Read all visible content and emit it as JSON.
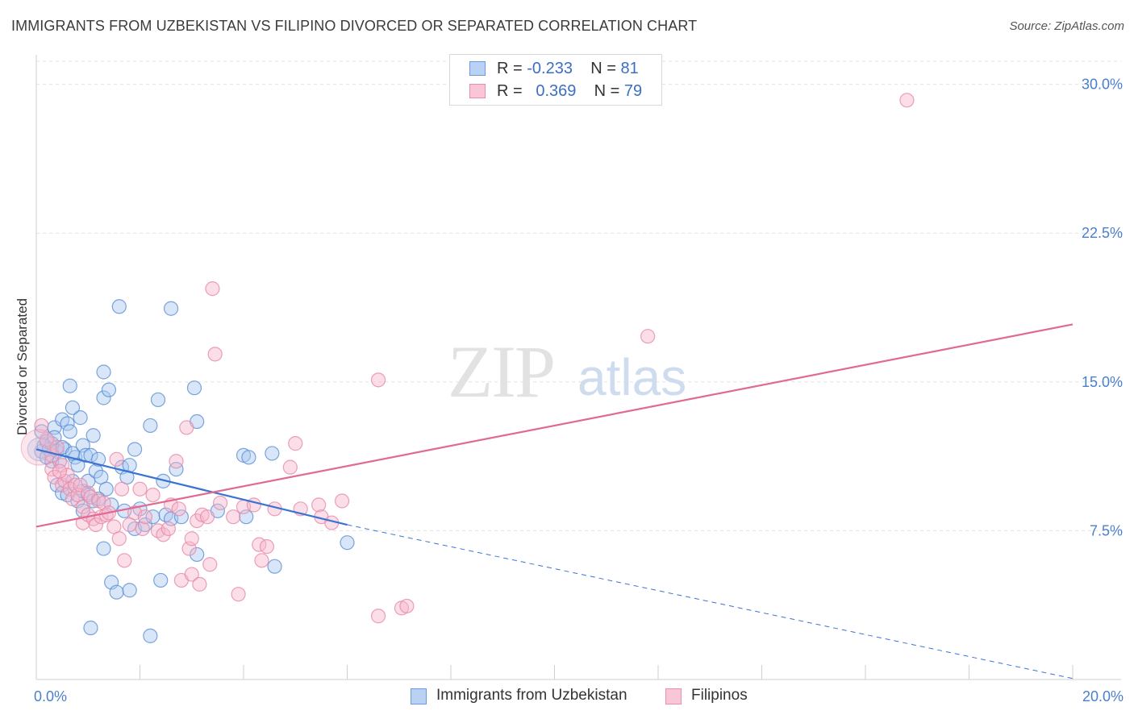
{
  "title": "IMMIGRANTS FROM UZBEKISTAN VS FILIPINO DIVORCED OR SEPARATED CORRELATION CHART",
  "source": "Source: ZipAtlas.com",
  "watermark": {
    "zip": "ZIP",
    "atlas": "atlas"
  },
  "legend": {
    "row1": {
      "r_label": "R = ",
      "r_value": "-0.233",
      "n_label": "N = ",
      "n_value": "81"
    },
    "row2": {
      "r_label": "R = ",
      "r_value": "0.369",
      "n_label": "N = ",
      "n_value": "79"
    }
  },
  "colors": {
    "blue_fill": "#a9c7ef",
    "blue_stroke": "#5b8fd6",
    "blue_line": "#3a74d1",
    "pink_fill": "#f6b6cb",
    "pink_stroke": "#e58aa8",
    "pink_line": "#e06a93",
    "tick_text": "#4a7fcf",
    "grid": "#e3e3e3"
  },
  "chart_data": {
    "type": "scatter",
    "title": "IMMIGRANTS FROM UZBEKISTAN VS FILIPINO DIVORCED OR SEPARATED CORRELATION CHART",
    "xlabel": "",
    "ylabel": "Divorced or Separated",
    "xlim": [
      0,
      20
    ],
    "ylim": [
      0,
      31
    ],
    "x_tick_labels": [
      "0.0%",
      "20.0%"
    ],
    "y_ticks": [
      7.5,
      15.0,
      22.5,
      30.0
    ],
    "y_tick_labels": [
      "7.5%",
      "15.0%",
      "22.5%",
      "30.0%"
    ],
    "grid": true,
    "legend_position": "top-center",
    "series": [
      {
        "name": "Immigrants from Uzbekistan",
        "color": "#a9c7ef",
        "r": -0.233,
        "n": 81,
        "trend": {
          "x": [
            0,
            6.0
          ],
          "y": [
            11.6,
            7.8
          ],
          "dashed_to": [
            20,
            0.05
          ]
        },
        "points": [
          [
            0.1,
            12.5
          ],
          [
            0.1,
            11.5
          ],
          [
            0.15,
            11.8
          ],
          [
            0.2,
            11.2
          ],
          [
            0.2,
            12.0
          ],
          [
            0.25,
            11.6
          ],
          [
            0.3,
            11.0
          ],
          [
            0.3,
            11.9
          ],
          [
            0.35,
            12.7
          ],
          [
            0.4,
            11.5
          ],
          [
            0.4,
            9.8
          ],
          [
            0.45,
            11.0
          ],
          [
            0.5,
            9.4
          ],
          [
            0.5,
            13.1
          ],
          [
            0.55,
            11.6
          ],
          [
            0.6,
            12.9
          ],
          [
            0.6,
            9.3
          ],
          [
            0.65,
            12.5
          ],
          [
            0.65,
            14.8
          ],
          [
            0.7,
            13.7
          ],
          [
            0.7,
            10.0
          ],
          [
            0.75,
            11.2
          ],
          [
            0.8,
            10.8
          ],
          [
            0.8,
            9.0
          ],
          [
            0.85,
            13.2
          ],
          [
            0.9,
            11.8
          ],
          [
            0.9,
            9.5
          ],
          [
            0.95,
            11.3
          ],
          [
            1.0,
            10.0
          ],
          [
            1.0,
            9.3
          ],
          [
            1.05,
            11.3
          ],
          [
            1.1,
            12.3
          ],
          [
            1.1,
            9.0
          ],
          [
            1.15,
            10.5
          ],
          [
            1.2,
            11.1
          ],
          [
            1.25,
            10.2
          ],
          [
            1.3,
            15.5
          ],
          [
            1.3,
            14.2
          ],
          [
            1.35,
            9.6
          ],
          [
            1.4,
            14.6
          ],
          [
            1.45,
            8.8
          ],
          [
            1.6,
            18.8
          ],
          [
            1.65,
            10.7
          ],
          [
            1.7,
            8.5
          ],
          [
            1.75,
            10.2
          ],
          [
            1.8,
            10.8
          ],
          [
            1.9,
            11.6
          ],
          [
            1.9,
            7.6
          ],
          [
            2.1,
            7.8
          ],
          [
            2.2,
            12.8
          ],
          [
            2.25,
            8.2
          ],
          [
            2.35,
            14.1
          ],
          [
            2.45,
            10.0
          ],
          [
            2.5,
            8.3
          ],
          [
            2.6,
            8.1
          ],
          [
            2.6,
            18.7
          ],
          [
            2.7,
            10.6
          ],
          [
            2.8,
            8.2
          ],
          [
            3.05,
            14.7
          ],
          [
            3.1,
            13.0
          ],
          [
            3.1,
            6.3
          ],
          [
            3.5,
            8.5
          ],
          [
            4.0,
            11.3
          ],
          [
            4.05,
            8.2
          ],
          [
            4.1,
            11.2
          ],
          [
            4.55,
            11.4
          ],
          [
            4.6,
            5.7
          ],
          [
            6.0,
            6.9
          ],
          [
            0.9,
            8.5
          ],
          [
            1.3,
            6.6
          ],
          [
            1.45,
            4.9
          ],
          [
            1.55,
            4.4
          ],
          [
            1.8,
            4.5
          ],
          [
            2.4,
            5.0
          ],
          [
            1.05,
            2.6
          ],
          [
            2.2,
            2.2
          ],
          [
            0.35,
            12.2
          ],
          [
            0.5,
            11.7
          ],
          [
            0.7,
            11.4
          ],
          [
            1.2,
            9.1
          ],
          [
            2.0,
            8.6
          ]
        ]
      },
      {
        "name": "Filipinos",
        "color": "#f6b6cb",
        "r": 0.369,
        "n": 79,
        "trend": {
          "x": [
            0,
            20
          ],
          "y": [
            7.7,
            17.9
          ]
        },
        "points": [
          [
            0.1,
            12.8
          ],
          [
            0.2,
            12.1
          ],
          [
            0.3,
            11.3
          ],
          [
            0.3,
            10.6
          ],
          [
            0.35,
            10.2
          ],
          [
            0.4,
            11.7
          ],
          [
            0.5,
            10.8
          ],
          [
            0.5,
            9.8
          ],
          [
            0.55,
            10.0
          ],
          [
            0.6,
            10.3
          ],
          [
            0.65,
            9.6
          ],
          [
            0.7,
            9.1
          ],
          [
            0.75,
            9.8
          ],
          [
            0.8,
            9.3
          ],
          [
            0.85,
            9.8
          ],
          [
            0.9,
            8.7
          ],
          [
            0.9,
            7.9
          ],
          [
            1.0,
            9.4
          ],
          [
            1.0,
            8.3
          ],
          [
            1.05,
            9.2
          ],
          [
            1.1,
            8.1
          ],
          [
            1.15,
            7.8
          ],
          [
            1.2,
            9.0
          ],
          [
            1.25,
            8.2
          ],
          [
            1.3,
            8.9
          ],
          [
            1.35,
            8.3
          ],
          [
            1.4,
            8.4
          ],
          [
            1.5,
            7.7
          ],
          [
            1.55,
            11.1
          ],
          [
            1.6,
            7.1
          ],
          [
            1.65,
            9.6
          ],
          [
            1.7,
            6.0
          ],
          [
            1.8,
            7.8
          ],
          [
            1.9,
            8.4
          ],
          [
            2.0,
            9.6
          ],
          [
            2.05,
            7.6
          ],
          [
            2.1,
            8.2
          ],
          [
            2.25,
            9.3
          ],
          [
            2.35,
            7.5
          ],
          [
            2.45,
            7.3
          ],
          [
            2.55,
            7.6
          ],
          [
            2.6,
            8.8
          ],
          [
            2.7,
            11.0
          ],
          [
            2.75,
            8.6
          ],
          [
            2.8,
            5.0
          ],
          [
            2.9,
            12.7
          ],
          [
            2.95,
            6.6
          ],
          [
            3.0,
            7.1
          ],
          [
            3.0,
            5.3
          ],
          [
            3.1,
            8.0
          ],
          [
            3.15,
            4.8
          ],
          [
            3.2,
            8.3
          ],
          [
            3.3,
            8.2
          ],
          [
            3.35,
            5.8
          ],
          [
            3.4,
            19.7
          ],
          [
            3.45,
            16.4
          ],
          [
            3.55,
            8.9
          ],
          [
            3.8,
            8.2
          ],
          [
            3.9,
            4.3
          ],
          [
            4.0,
            8.7
          ],
          [
            4.2,
            8.8
          ],
          [
            4.3,
            6.8
          ],
          [
            4.35,
            6.0
          ],
          [
            4.45,
            6.7
          ],
          [
            4.6,
            8.6
          ],
          [
            4.9,
            10.7
          ],
          [
            5.0,
            11.9
          ],
          [
            5.1,
            8.6
          ],
          [
            5.45,
            8.8
          ],
          [
            5.5,
            8.2
          ],
          [
            5.7,
            7.9
          ],
          [
            5.9,
            9.0
          ],
          [
            6.6,
            15.1
          ],
          [
            6.6,
            3.2
          ],
          [
            7.05,
            3.6
          ],
          [
            7.15,
            3.7
          ],
          [
            11.8,
            17.3
          ],
          [
            16.8,
            29.2
          ],
          [
            0.45,
            10.5
          ]
        ]
      }
    ]
  },
  "bottom_legend": {
    "item1": "Immigrants from Uzbekistan",
    "item2": "Filipinos"
  }
}
